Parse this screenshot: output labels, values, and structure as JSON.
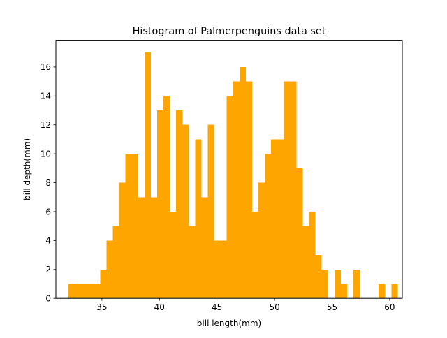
{
  "chart_data": {
    "type": "bar",
    "title": "Histogram of Palmerpenguins data set",
    "xlabel": "bill length(mm)",
    "ylabel": "bill depth(mm)",
    "xlim": [
      31.0,
      61.1
    ],
    "ylim": [
      0,
      17.85
    ],
    "xticks": [
      35,
      40,
      45,
      50,
      55,
      60
    ],
    "yticks": [
      0,
      2,
      4,
      6,
      8,
      10,
      12,
      14,
      16
    ],
    "grid": false,
    "legend": "none",
    "color": "#ffa500",
    "bin_start": 32.1,
    "bin_width": 0.55,
    "counts": [
      1,
      1,
      1,
      1,
      1,
      2,
      4,
      5,
      8,
      10,
      10,
      7,
      17,
      7,
      13,
      14,
      6,
      13,
      12,
      5,
      11,
      7,
      12,
      4,
      4,
      14,
      15,
      16,
      15,
      6,
      8,
      10,
      11,
      11,
      15,
      15,
      9,
      5,
      6,
      3,
      2,
      0,
      2,
      1,
      0,
      2,
      0,
      0,
      0,
      1,
      0,
      1
    ]
  }
}
